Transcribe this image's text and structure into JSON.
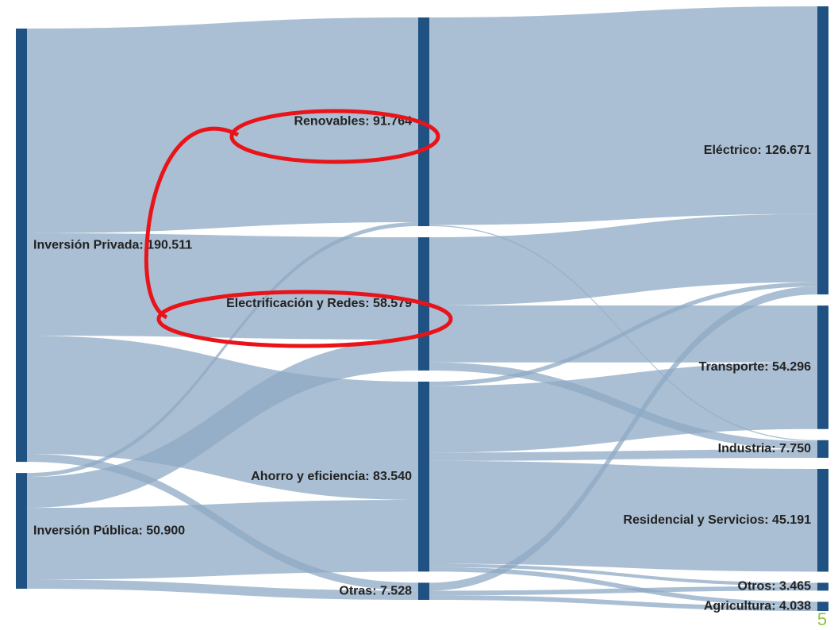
{
  "chart_data": {
    "type": "sankey",
    "node_color": "#1f5282",
    "link_color": "#8eaac4",
    "nodes": [
      {
        "label": "Inversión Privada: 190.511",
        "value": 190.511
      },
      {
        "label": "Inversión Pública: 50.900",
        "value": 50.9
      },
      {
        "label": "Renovables: 91.764",
        "value": 91.764
      },
      {
        "label": "Electrificación y Redes: 58.579",
        "value": 58.579
      },
      {
        "label": "Ahorro y eficiencia: 83.540",
        "value": 83.54
      },
      {
        "label": "Otras: 7.528",
        "value": 7.528
      },
      {
        "label": "Eléctrico: 126.671",
        "value": 126.671
      },
      {
        "label": "Transporte: 54.296",
        "value": 54.296
      },
      {
        "label": "Industria: 7.750",
        "value": 7.75
      },
      {
        "label": "Residencial y Servicios: 45.191",
        "value": 45.191
      },
      {
        "label": "Otros: 3.465",
        "value": 3.465
      },
      {
        "label": "Agricultura: 4.038",
        "value": 4.038
      }
    ],
    "links": [
      {
        "source": 0,
        "target": 2,
        "value": 90
      },
      {
        "source": 0,
        "target": 3,
        "value": 45
      },
      {
        "source": 0,
        "target": 4,
        "value": 52
      },
      {
        "source": 0,
        "target": 5,
        "value": 3.511
      },
      {
        "source": 1,
        "target": 2,
        "value": 1.764
      },
      {
        "source": 1,
        "target": 3,
        "value": 13.579
      },
      {
        "source": 1,
        "target": 4,
        "value": 31.54
      },
      {
        "source": 1,
        "target": 5,
        "value": 4.017
      },
      {
        "source": 2,
        "target": 6,
        "value": 91.264
      },
      {
        "source": 2,
        "target": 8,
        "value": 0.5
      },
      {
        "source": 3,
        "target": 6,
        "value": 30
      },
      {
        "source": 3,
        "target": 7,
        "value": 25
      },
      {
        "source": 3,
        "target": 8,
        "value": 3.579
      },
      {
        "source": 4,
        "target": 6,
        "value": 1.907
      },
      {
        "source": 4,
        "target": 7,
        "value": 29.296
      },
      {
        "source": 4,
        "target": 8,
        "value": 3.671
      },
      {
        "source": 4,
        "target": 9,
        "value": 45.191
      },
      {
        "source": 4,
        "target": 10,
        "value": 1.465
      },
      {
        "source": 4,
        "target": 11,
        "value": 2.01
      },
      {
        "source": 5,
        "target": 6,
        "value": 3.5
      },
      {
        "source": 5,
        "target": 10,
        "value": 2
      },
      {
        "source": 5,
        "target": 11,
        "value": 2.028
      }
    ]
  },
  "page_number": "5"
}
